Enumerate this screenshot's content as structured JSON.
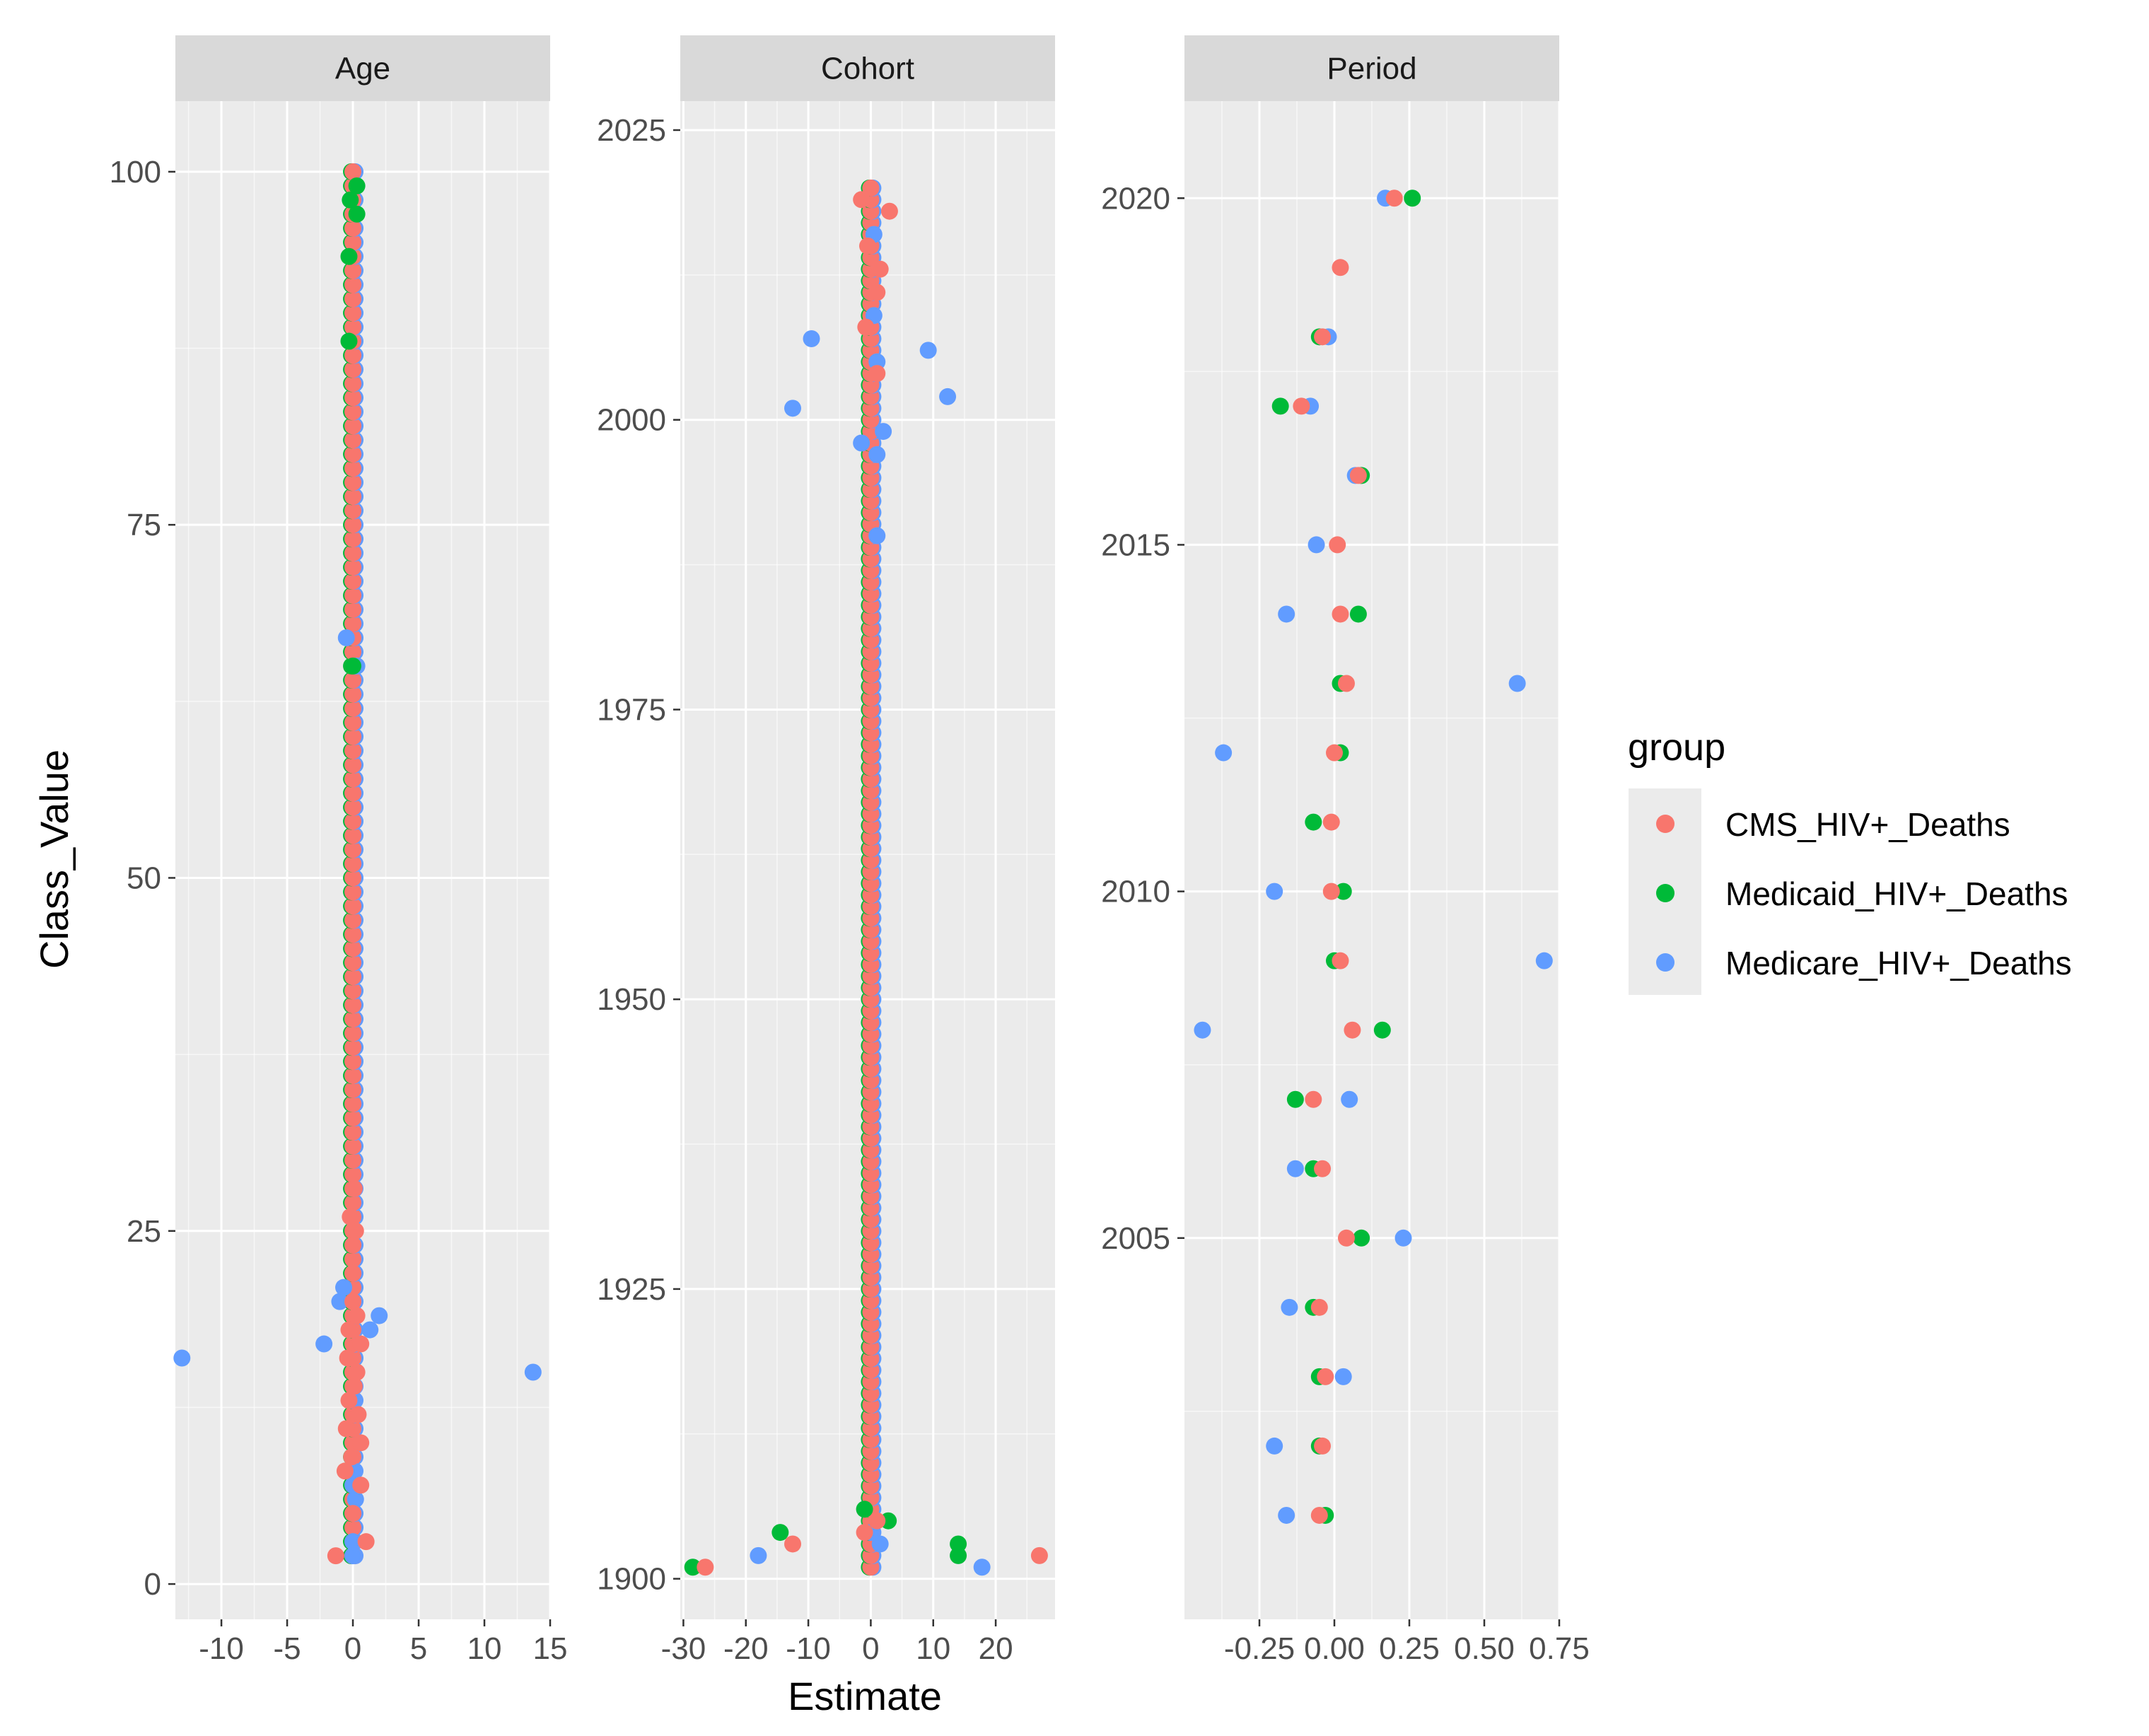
{
  "chart_data": {
    "type": "scatter",
    "ylabel": "Class_Value",
    "xlabel": "Estimate",
    "legend": {
      "title": "group",
      "position": "right",
      "entries": [
        {
          "name": "CMS_HIV+_Deaths",
          "color": "#F8766D"
        },
        {
          "name": "Medicaid_HIV+_Deaths",
          "color": "#00BA38"
        },
        {
          "name": "Medicare_HIV+_Deaths",
          "color": "#619CFF"
        }
      ]
    },
    "colors": {
      "panel_bg": "#EBEBEB",
      "grid": "#FFFFFF",
      "strip_bg": "#D9D9D9"
    },
    "panels": [
      {
        "strip": "Age",
        "xlim": [
          -13.5,
          15
        ],
        "ylim": [
          -2.5,
          105
        ],
        "xticks": [
          -10,
          -5,
          0,
          5,
          10,
          15
        ],
        "xtick_labels": [
          "-10",
          "-5",
          "0",
          "5",
          "10",
          "15"
        ],
        "yticks": [
          0,
          25,
          50,
          75,
          100
        ],
        "ytick_labels": [
          "0",
          "25",
          "50",
          "75",
          "100"
        ],
        "bulk_x": 0,
        "bulk_y_min": 2,
        "bulk_y_max": 100,
        "points": [
          {
            "g": 0,
            "x": -1.3,
            "y": 2
          },
          {
            "g": 2,
            "x": 0,
            "y": 2
          },
          {
            "g": 0,
            "x": 1,
            "y": 3
          },
          {
            "g": 2,
            "x": 0,
            "y": 3
          },
          {
            "g": 0,
            "x": 0,
            "y": 5
          },
          {
            "g": 2,
            "x": 0.2,
            "y": 6
          },
          {
            "g": 0,
            "x": 0.6,
            "y": 7
          },
          {
            "g": 2,
            "x": 0,
            "y": 7
          },
          {
            "g": 0,
            "x": -0.6,
            "y": 8
          },
          {
            "g": 2,
            "x": 0.1,
            "y": 8
          },
          {
            "g": 0,
            "x": -0.1,
            "y": 9
          },
          {
            "g": 0,
            "x": 0.6,
            "y": 10
          },
          {
            "g": 0,
            "x": -0.5,
            "y": 11
          },
          {
            "g": 0,
            "x": 0.4,
            "y": 12
          },
          {
            "g": 2,
            "x": 0,
            "y": 13
          },
          {
            "g": 0,
            "x": -0.3,
            "y": 13
          },
          {
            "g": 0,
            "x": 0.1,
            "y": 14
          },
          {
            "g": 0,
            "x": 0.3,
            "y": 15
          },
          {
            "g": 2,
            "x": -13,
            "y": 16
          },
          {
            "g": 0,
            "x": -0.4,
            "y": 16
          },
          {
            "g": 2,
            "x": 13.7,
            "y": 15
          },
          {
            "g": 2,
            "x": -2.2,
            "y": 17
          },
          {
            "g": 0,
            "x": 0.6,
            "y": 17
          },
          {
            "g": 2,
            "x": 1.3,
            "y": 18
          },
          {
            "g": 0,
            "x": -0.3,
            "y": 18
          },
          {
            "g": 2,
            "x": 2,
            "y": 19
          },
          {
            "g": 0,
            "x": 0.3,
            "y": 19
          },
          {
            "g": 2,
            "x": -1,
            "y": 20
          },
          {
            "g": 0,
            "x": 0,
            "y": 20
          },
          {
            "g": 2,
            "x": -0.7,
            "y": 21
          },
          {
            "g": 0,
            "x": 0,
            "y": 22
          },
          {
            "g": 0,
            "x": 0,
            "y": 24
          },
          {
            "g": 0,
            "x": 0.2,
            "y": 25
          },
          {
            "g": 0,
            "x": -0.2,
            "y": 26
          },
          {
            "g": 0,
            "x": 0.1,
            "y": 28
          },
          {
            "g": 2,
            "x": -0.5,
            "y": 67
          },
          {
            "g": 2,
            "x": 0.3,
            "y": 65
          },
          {
            "g": 1,
            "x": 0,
            "y": 65
          },
          {
            "g": 1,
            "x": 0.3,
            "y": 99
          },
          {
            "g": 1,
            "x": -0.2,
            "y": 98
          },
          {
            "g": 1,
            "x": 0.3,
            "y": 97
          },
          {
            "g": 1,
            "x": -0.3,
            "y": 94
          },
          {
            "g": 1,
            "x": -0.3,
            "y": 88
          }
        ]
      },
      {
        "strip": "Cohort",
        "xlim": [
          -30.5,
          29.5
        ],
        "ylim": [
          1896.5,
          2027.5
        ],
        "xticks": [
          -30,
          -20,
          -10,
          0,
          10,
          20
        ],
        "xtick_labels": [
          "-30",
          "-20",
          "-10",
          "0",
          "10",
          "20"
        ],
        "yticks": [
          1900,
          1925,
          1950,
          1975,
          2000,
          2025
        ],
        "ytick_labels": [
          "1900",
          "1925",
          "1950",
          "1975",
          "2000",
          "2025"
        ],
        "bulk_x": 0,
        "bulk_y_min": 1901,
        "bulk_y_max": 2020,
        "points": [
          {
            "g": 1,
            "x": -28.5,
            "y": 1901
          },
          {
            "g": 0,
            "x": -26.5,
            "y": 1901
          },
          {
            "g": 2,
            "x": -18,
            "y": 1902
          },
          {
            "g": 1,
            "x": -14.5,
            "y": 1904
          },
          {
            "g": 0,
            "x": -12.5,
            "y": 1903
          },
          {
            "g": 2,
            "x": 1.5,
            "y": 1903
          },
          {
            "g": 0,
            "x": -1,
            "y": 1904
          },
          {
            "g": 2,
            "x": 0,
            "y": 1904
          },
          {
            "g": 1,
            "x": 2.8,
            "y": 1905
          },
          {
            "g": 0,
            "x": 1,
            "y": 1905
          },
          {
            "g": 1,
            "x": -1,
            "y": 1906
          },
          {
            "g": 1,
            "x": 14,
            "y": 1903
          },
          {
            "g": 1,
            "x": 14,
            "y": 1902
          },
          {
            "g": 2,
            "x": 17.8,
            "y": 1901
          },
          {
            "g": 0,
            "x": 27,
            "y": 1902
          },
          {
            "g": 2,
            "x": -12.5,
            "y": 2001
          },
          {
            "g": 2,
            "x": -9.5,
            "y": 2007
          },
          {
            "g": 2,
            "x": 9.2,
            "y": 2006
          },
          {
            "g": 2,
            "x": 12.3,
            "y": 2002
          },
          {
            "g": 2,
            "x": 2,
            "y": 1999
          },
          {
            "g": 2,
            "x": -1.5,
            "y": 1998
          },
          {
            "g": 2,
            "x": 1,
            "y": 1997
          },
          {
            "g": 2,
            "x": 1,
            "y": 1990
          },
          {
            "g": 2,
            "x": 1,
            "y": 2005
          },
          {
            "g": 0,
            "x": 3,
            "y": 2018
          },
          {
            "g": 0,
            "x": -1.5,
            "y": 2019
          },
          {
            "g": 0,
            "x": 0,
            "y": 2020
          },
          {
            "g": 0,
            "x": 1.5,
            "y": 2013
          },
          {
            "g": 0,
            "x": 1,
            "y": 2011
          },
          {
            "g": 0,
            "x": -0.5,
            "y": 2015
          },
          {
            "g": 0,
            "x": 1,
            "y": 2004
          },
          {
            "g": 0,
            "x": -0.8,
            "y": 2008
          },
          {
            "g": 2,
            "x": 0.5,
            "y": 2016
          },
          {
            "g": 2,
            "x": 0.5,
            "y": 2009
          }
        ]
      },
      {
        "strip": "Period",
        "xlim": [
          -0.5,
          0.75
        ],
        "ylim": [
          1999.5,
          2021.4
        ],
        "xticks": [
          -0.25,
          0,
          0.25,
          0.5,
          0.75
        ],
        "xtick_labels": [
          "-0.25",
          "0.00",
          "0.25",
          "0.50",
          "0.75"
        ],
        "yticks": [
          2005,
          2010,
          2015,
          2020
        ],
        "ytick_labels": [
          "2005",
          "2010",
          "2015",
          "2020"
        ],
        "points": [
          {
            "g": 2,
            "x": 0.17,
            "y": 2020
          },
          {
            "g": 0,
            "x": 0.2,
            "y": 2020
          },
          {
            "g": 1,
            "x": 0.26,
            "y": 2020
          },
          {
            "g": 0,
            "x": 0.02,
            "y": 2019
          },
          {
            "g": 1,
            "x": -0.05,
            "y": 2018
          },
          {
            "g": 2,
            "x": -0.02,
            "y": 2018
          },
          {
            "g": 0,
            "x": -0.04,
            "y": 2018
          },
          {
            "g": 1,
            "x": -0.18,
            "y": 2017
          },
          {
            "g": 2,
            "x": -0.08,
            "y": 2017
          },
          {
            "g": 0,
            "x": -0.11,
            "y": 2017
          },
          {
            "g": 1,
            "x": 0.09,
            "y": 2016
          },
          {
            "g": 2,
            "x": 0.07,
            "y": 2016
          },
          {
            "g": 0,
            "x": 0.08,
            "y": 2016
          },
          {
            "g": 2,
            "x": -0.06,
            "y": 2015
          },
          {
            "g": 0,
            "x": 0.01,
            "y": 2015
          },
          {
            "g": 2,
            "x": -0.16,
            "y": 2014
          },
          {
            "g": 1,
            "x": 0.08,
            "y": 2014
          },
          {
            "g": 0,
            "x": 0.02,
            "y": 2014
          },
          {
            "g": 1,
            "x": 0.02,
            "y": 2013
          },
          {
            "g": 0,
            "x": 0.04,
            "y": 2013
          },
          {
            "g": 2,
            "x": 0.61,
            "y": 2013
          },
          {
            "g": 2,
            "x": -0.37,
            "y": 2012
          },
          {
            "g": 1,
            "x": 0.02,
            "y": 2012
          },
          {
            "g": 0,
            "x": 0.0,
            "y": 2012
          },
          {
            "g": 1,
            "x": -0.07,
            "y": 2011
          },
          {
            "g": 0,
            "x": -0.01,
            "y": 2011
          },
          {
            "g": 2,
            "x": -0.2,
            "y": 2010
          },
          {
            "g": 1,
            "x": 0.03,
            "y": 2010
          },
          {
            "g": 0,
            "x": -0.01,
            "y": 2010
          },
          {
            "g": 1,
            "x": 0.0,
            "y": 2009
          },
          {
            "g": 0,
            "x": 0.02,
            "y": 2009
          },
          {
            "g": 2,
            "x": 0.7,
            "y": 2009
          },
          {
            "g": 2,
            "x": -0.44,
            "y": 2008
          },
          {
            "g": 0,
            "x": 0.06,
            "y": 2008
          },
          {
            "g": 1,
            "x": 0.16,
            "y": 2008
          },
          {
            "g": 1,
            "x": -0.13,
            "y": 2007
          },
          {
            "g": 0,
            "x": -0.07,
            "y": 2007
          },
          {
            "g": 2,
            "x": 0.05,
            "y": 2007
          },
          {
            "g": 2,
            "x": -0.13,
            "y": 2006
          },
          {
            "g": 1,
            "x": -0.07,
            "y": 2006
          },
          {
            "g": 0,
            "x": -0.04,
            "y": 2006
          },
          {
            "g": 0,
            "x": 0.04,
            "y": 2005
          },
          {
            "g": 1,
            "x": 0.09,
            "y": 2005
          },
          {
            "g": 2,
            "x": 0.23,
            "y": 2005
          },
          {
            "g": 2,
            "x": -0.15,
            "y": 2004
          },
          {
            "g": 1,
            "x": -0.07,
            "y": 2004
          },
          {
            "g": 0,
            "x": -0.05,
            "y": 2004
          },
          {
            "g": 1,
            "x": -0.05,
            "y": 2003
          },
          {
            "g": 0,
            "x": -0.03,
            "y": 2003
          },
          {
            "g": 2,
            "x": 0.03,
            "y": 2003
          },
          {
            "g": 2,
            "x": -0.2,
            "y": 2002
          },
          {
            "g": 1,
            "x": -0.05,
            "y": 2002
          },
          {
            "g": 0,
            "x": -0.04,
            "y": 2002
          },
          {
            "g": 2,
            "x": -0.16,
            "y": 2001
          },
          {
            "g": 1,
            "x": -0.03,
            "y": 2001
          },
          {
            "g": 0,
            "x": -0.05,
            "y": 2001
          }
        ]
      }
    ]
  }
}
